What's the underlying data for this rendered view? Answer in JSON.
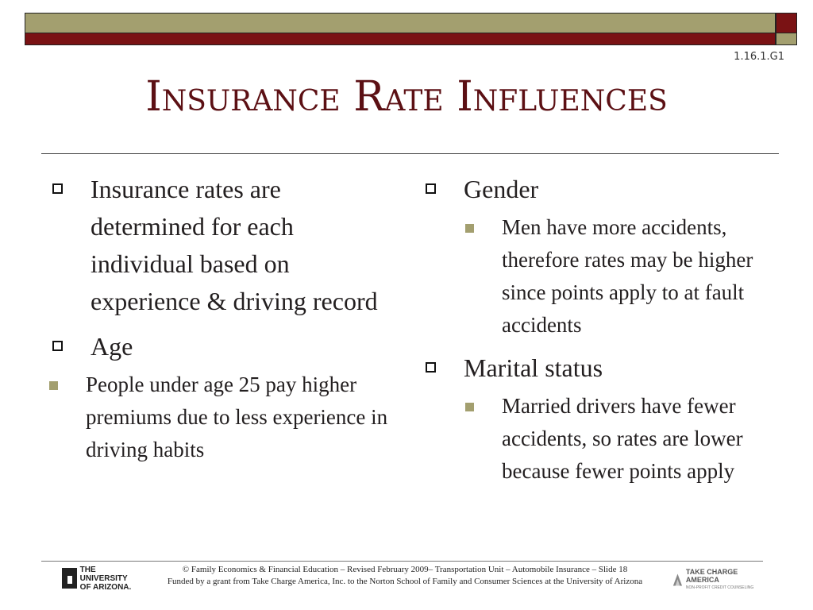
{
  "slide": {
    "code": "1.16.1.G1",
    "title": "Insurance Rate Influences"
  },
  "colors": {
    "olive": "#a39f6f",
    "maroon": "#7a1214",
    "title": "#5c1014"
  },
  "left_column": {
    "bullets": [
      {
        "text": "Insurance rates are determined for each individual based on experience & driving record"
      },
      {
        "text": "Age",
        "sub": "People under age 25 pay higher premiums due to less experience in driving habits"
      }
    ]
  },
  "right_column": {
    "bullets": [
      {
        "text": "Gender",
        "sub": "Men have more accidents, therefore rates may be higher since points apply to at fault accidents"
      },
      {
        "text": "Marital status",
        "sub": "Married drivers have fewer accidents, so rates are lower because fewer points apply"
      }
    ]
  },
  "footer": {
    "line1": "© Family Economics & Financial Education – Revised February 2009– Transportation Unit – Automobile Insurance – Slide 18",
    "line2": "Funded by a grant from Take Charge America, Inc. to the Norton School of Family and Consumer Sciences at the University of Arizona",
    "ua_logo_line1": "THE UNIVERSITY",
    "ua_logo_line2": "OF ARIZONA.",
    "tca_logo_name": "TAKE CHARGE AMERICA",
    "tca_logo_sub": "NON-PROFIT CREDIT COUNSELING"
  }
}
